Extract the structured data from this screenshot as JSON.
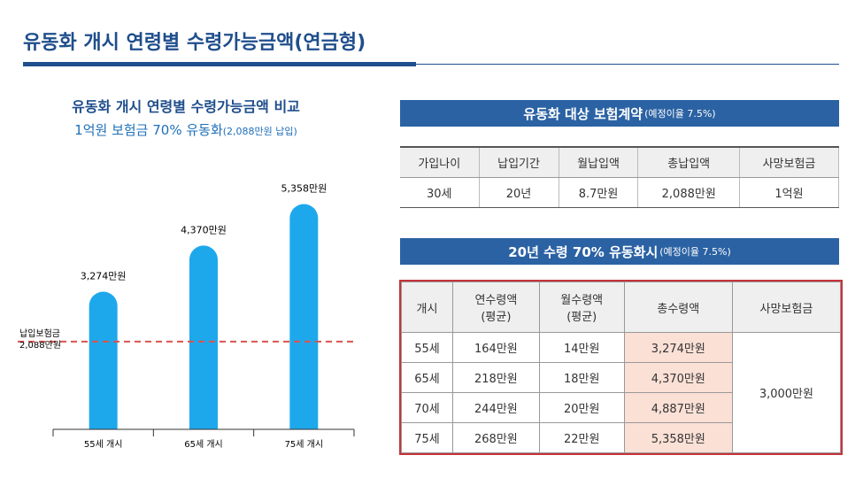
{
  "header": {
    "title": "유동화 개시 연령별 수령가능금액(연금형)"
  },
  "chart_data": {
    "type": "bar",
    "title": "유동화 개시 연령별 수령가능금액 비교",
    "subtitle": "1억원 보험금 70% 유동화",
    "subtitle_note": "(2,088만원 납입)",
    "categories": [
      "55세 개시",
      "65세 개시",
      "75세 개시"
    ],
    "values": [
      3274,
      4370,
      5358
    ],
    "value_labels": [
      "3,274만원",
      "4,370만원",
      "5,358만원"
    ],
    "color": "#1ea8ec",
    "ylim": [
      0,
      6000
    ],
    "reference_line": {
      "value": 2088,
      "label": [
        "납입보험금",
        "2,088만원"
      ],
      "color": "#d9534f"
    }
  },
  "table1": {
    "title": "유동화 대상 보험계약",
    "title_note": "(예정이율 7.5%)",
    "headers": [
      "가입나이",
      "납입기간",
      "월납입액",
      "총납입액",
      "사망보험금"
    ],
    "rows": [
      [
        "30세",
        "20년",
        "8.7만원",
        "2,088만원",
        "1억원"
      ]
    ]
  },
  "table2": {
    "title": "20년 수령 70% 유동화시",
    "title_note": "(예정이율 7.5%)",
    "headers": [
      [
        "개시"
      ],
      [
        "연수령액",
        "(평균)"
      ],
      [
        "월수령액",
        "(평균)"
      ],
      [
        "총수령액"
      ],
      [
        "사망보험금"
      ]
    ],
    "rows": [
      [
        "55세",
        "164만원",
        "14만원",
        "3,274만원"
      ],
      [
        "65세",
        "218만원",
        "18만원",
        "4,370만원"
      ],
      [
        "70세",
        "244만원",
        "20만원",
        "4,887만원"
      ],
      [
        "75세",
        "268만원",
        "22만원",
        "5,358만원"
      ]
    ],
    "merged_cell": "3,000만원"
  }
}
